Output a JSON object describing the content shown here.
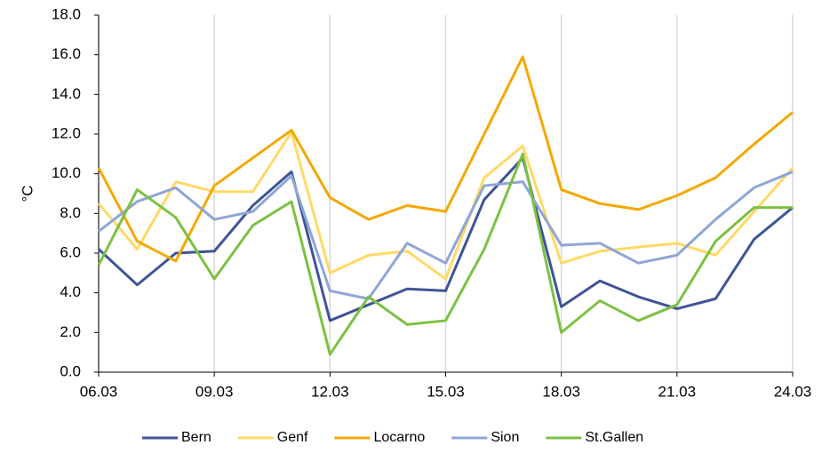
{
  "chart_data": {
    "type": "line",
    "y_label": "°C",
    "categories": [
      "06.03",
      null,
      null,
      "09.03",
      null,
      null,
      "12.03",
      null,
      null,
      "15.03",
      null,
      null,
      "18.03",
      null,
      null,
      "21.03",
      null,
      null,
      "24.03"
    ],
    "series": [
      {
        "name": "Bern",
        "color": "#3f5497",
        "values": [
          6.2,
          4.4,
          6.0,
          6.1,
          8.4,
          10.1,
          2.6,
          3.4,
          4.2,
          4.1,
          8.7,
          10.8,
          3.3,
          4.6,
          3.8,
          3.2,
          3.7,
          6.7,
          8.3
        ]
      },
      {
        "name": "Genf",
        "color": "#ffd966",
        "values": [
          8.5,
          6.2,
          9.6,
          9.1,
          9.1,
          12.1,
          5.0,
          5.9,
          6.1,
          4.7,
          9.8,
          11.4,
          5.5,
          6.1,
          6.3,
          6.5,
          5.9,
          8.1,
          10.3
        ]
      },
      {
        "name": "Locarno",
        "color": "#f5a800",
        "values": [
          10.3,
          6.6,
          5.6,
          9.4,
          10.8,
          12.2,
          8.8,
          7.7,
          8.4,
          8.1,
          12.0,
          15.9,
          9.2,
          8.5,
          8.2,
          8.9,
          9.8,
          11.5,
          13.1
        ]
      },
      {
        "name": "Sion",
        "color": "#8fa6d6",
        "values": [
          7.1,
          8.6,
          9.3,
          7.7,
          8.1,
          9.9,
          4.1,
          3.7,
          6.5,
          5.5,
          9.4,
          9.6,
          6.4,
          6.5,
          5.5,
          5.9,
          7.7,
          9.3,
          10.1
        ]
      },
      {
        "name": "St.Gallen",
        "color": "#7cc142",
        "values": [
          5.4,
          9.2,
          7.8,
          4.7,
          7.4,
          8.6,
          0.9,
          3.8,
          2.4,
          2.6,
          6.2,
          11.0,
          2.0,
          3.6,
          2.6,
          3.4,
          6.6,
          8.3,
          8.3
        ]
      }
    ],
    "ylim": [
      0,
      18
    ],
    "yticks": [
      {
        "value": 0,
        "label": "0.0"
      },
      {
        "value": 2,
        "label": "2.0"
      },
      {
        "value": 4,
        "label": "4.0"
      },
      {
        "value": 6,
        "label": "6.0"
      },
      {
        "value": 8,
        "label": "8.0"
      },
      {
        "value": 10,
        "label": "10.0"
      },
      {
        "value": 12,
        "label": "12.0"
      },
      {
        "value": 14,
        "label": "14.0"
      },
      {
        "value": 16,
        "label": "16.0"
      },
      {
        "value": 18,
        "label": "18.0"
      }
    ],
    "xgrid": true,
    "legend": "bottom"
  }
}
